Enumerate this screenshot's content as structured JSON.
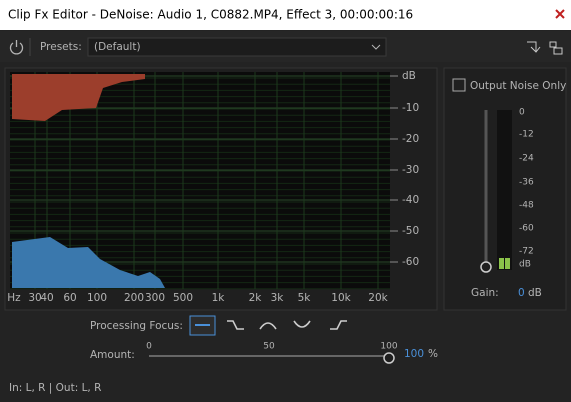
{
  "title_bar": {
    "title": "Clip Fx Editor - DeNoise: Audio 1, C0882.MP4, Effect 3, 00:00:00:16"
  },
  "toolbar": {
    "presets_label": "Presets:",
    "preset": "(Default)"
  },
  "spectrum": {
    "db_labels": [
      "dB",
      "-10",
      "-20",
      "-30",
      "-40",
      "-50",
      "-60"
    ],
    "freq_labels": [
      "Hz",
      "30",
      "40",
      "60",
      "100",
      "200",
      "300",
      "500",
      "1k",
      "2k",
      "3k",
      "5k",
      "10k",
      "20k"
    ]
  },
  "output_panel": {
    "checkbox_label": "Output Noise Only",
    "meter_labels": [
      "0",
      "-12",
      "-24",
      "-36",
      "-48",
      "-60",
      "-72",
      "dB"
    ],
    "gain_label": "Gain:",
    "gain_value": "0",
    "gain_unit": "dB"
  },
  "processing_focus": {
    "label": "Processing Focus:"
  },
  "amount": {
    "label": "Amount:",
    "scale": [
      "0",
      "50",
      "100"
    ],
    "value": "100",
    "unit": "%"
  },
  "status": "In: L, R | Out: L, R"
}
